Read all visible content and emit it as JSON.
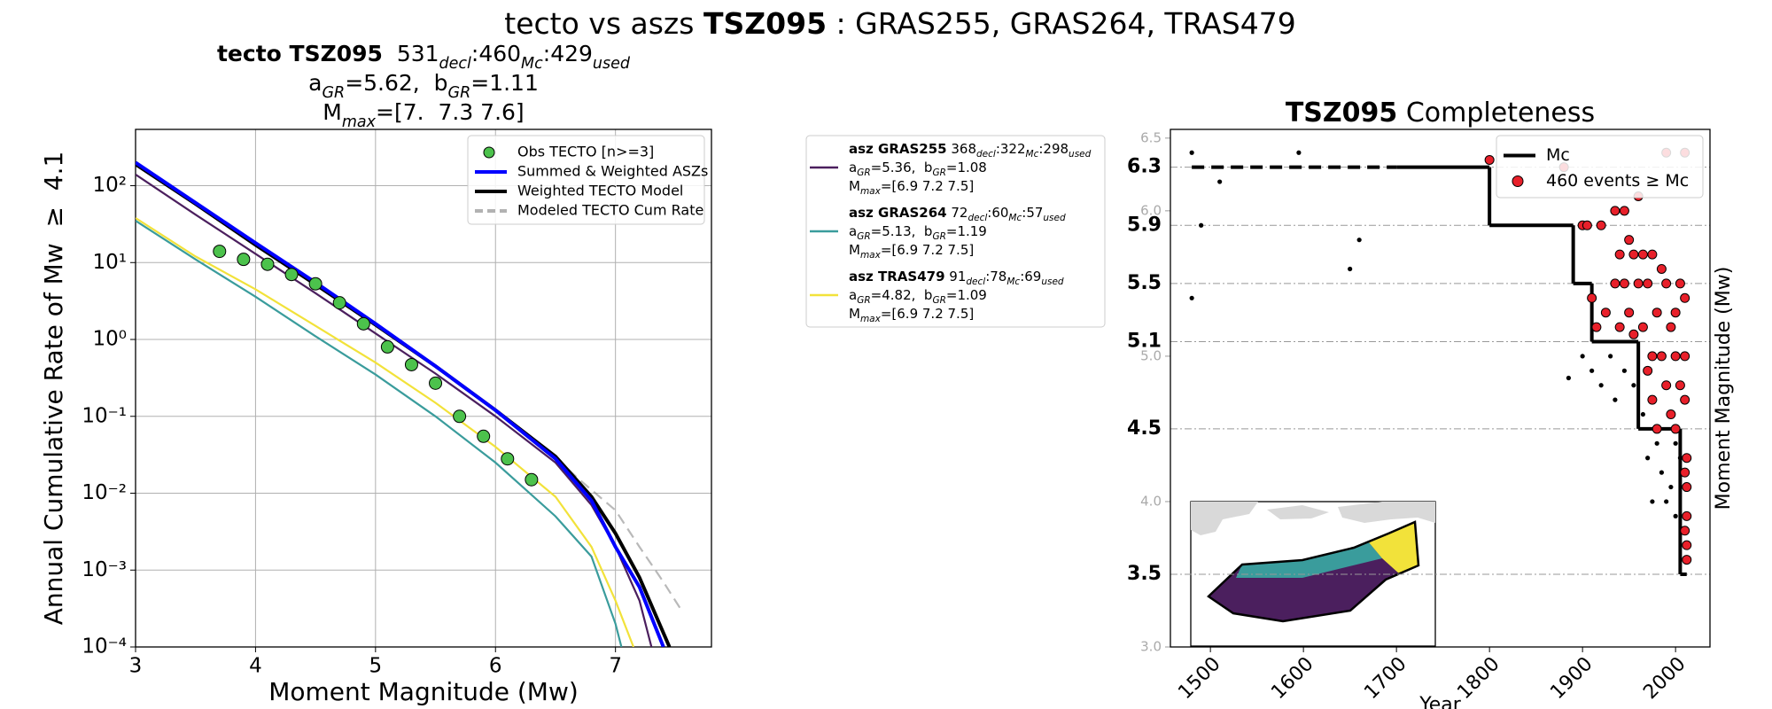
{
  "suptitle": [
    {
      "text": "tecto vs aszs "
    },
    {
      "bold": "TSZ095"
    },
    {
      "text": " : GRAS255, GRAS264, TRAS479"
    }
  ],
  "chart_data": [
    {
      "type": "line",
      "log_y": true,
      "grid": true,
      "legend": "upper right",
      "title_lines": [
        [
          {
            "bold": "tecto TSZ095"
          },
          {
            "text": "  531"
          },
          {
            "sub": "decl"
          },
          {
            "text": ":460"
          },
          {
            "sub": "Mc"
          },
          {
            "text": ":429"
          },
          {
            "sub": "used"
          }
        ],
        [
          {
            "text": "a"
          },
          {
            "sub": "GR"
          },
          {
            "text": "=5.62,  b"
          },
          {
            "sub": "GR"
          },
          {
            "text": "=1.11"
          }
        ],
        [
          {
            "text": "M"
          },
          {
            "sub": "max"
          },
          {
            "text": "=[7.  7.3 7.6]"
          }
        ]
      ],
      "xlabel": "Moment Magnitude (Mw)",
      "ylabel": "Annual Cumulative Rate of Mw  ≥  4.1",
      "xlim": [
        3,
        7.8
      ],
      "xticks": [
        3,
        4,
        5,
        6,
        7
      ],
      "ylim": [
        0.0001,
        540
      ],
      "yticks": [
        {
          "value": 0.0001,
          "label": "10⁻⁴"
        },
        {
          "value": 0.001,
          "label": "10⁻³"
        },
        {
          "value": 0.01,
          "label": "10⁻²"
        },
        {
          "value": 0.1,
          "label": "10⁻¹"
        },
        {
          "value": 1,
          "label": "10⁰"
        },
        {
          "value": 10,
          "label": "10¹"
        },
        {
          "value": 100,
          "label": "10²"
        }
      ],
      "series": [
        {
          "name": "Obs TECTO [n>=3]",
          "style": "markers",
          "color": "#4cc24c",
          "legend": "main",
          "x": [
            3.7,
            3.9,
            4.1,
            4.3,
            4.5,
            4.7,
            4.9,
            5.1,
            5.3,
            5.5,
            5.7,
            5.9,
            6.1,
            6.3
          ],
          "values": [
            14,
            11,
            9.5,
            7,
            5.3,
            3,
            1.6,
            0.8,
            0.47,
            0.27,
            0.1,
            0.055,
            0.028,
            0.015
          ]
        },
        {
          "name": "Summed & Weighted ASZs",
          "style": "solid",
          "color": "#0000ff",
          "legend": "main",
          "x": [
            3,
            3.5,
            4,
            4.5,
            5,
            5.5,
            6,
            6.5,
            6.8,
            7,
            7.2,
            7.4
          ],
          "values": [
            200,
            60,
            18,
            5.5,
            1.6,
            0.45,
            0.12,
            0.028,
            0.008,
            0.002,
            0.0006,
            0.0001
          ]
        },
        {
          "name": "Weighted TECTO Model",
          "style": "solid",
          "color": "#000000",
          "legend": "main",
          "x": [
            3,
            3.5,
            4,
            4.5,
            5,
            5.5,
            6,
            6.5,
            6.8,
            7,
            7.2,
            7.45
          ],
          "values": [
            190,
            58,
            17,
            5.2,
            1.55,
            0.45,
            0.12,
            0.03,
            0.009,
            0.003,
            0.0008,
            0.0001
          ]
        },
        {
          "name": "Modeled TECTO Cum Rate",
          "style": "dashed",
          "color": "#808080",
          "legend": "main",
          "x": [
            6.4,
            6.7,
            7,
            7.2,
            7.4,
            7.55
          ],
          "values": [
            0.04,
            0.015,
            0.006,
            0.002,
            0.0007,
            0.0003
          ]
        },
        {
          "name": "asz GRAS255",
          "style": "solid",
          "color": "#4b1f5e",
          "legend": "panel",
          "details": [
            [
              {
                "text": " 368"
              },
              {
                "sub": "decl"
              },
              {
                "text": ":322"
              },
              {
                "sub": "Mc"
              },
              {
                "text": ":298"
              },
              {
                "sub": "used"
              }
            ],
            [
              {
                "text": "a"
              },
              {
                "sub": "GR"
              },
              {
                "text": "=5.36,  b"
              },
              {
                "sub": "GR"
              },
              {
                "text": "=1.08"
              }
            ],
            [
              {
                "text": "M"
              },
              {
                "sub": "max"
              },
              {
                "text": "=[6.9 7.2 7.5]"
              }
            ]
          ],
          "x": [
            3,
            3.5,
            4,
            4.5,
            5,
            5.5,
            6,
            6.5,
            6.8,
            7,
            7.2,
            7.3
          ],
          "values": [
            140,
            42,
            13,
            4,
            1.2,
            0.36,
            0.1,
            0.025,
            0.007,
            0.002,
            0.0004,
            0.0001
          ]
        },
        {
          "name": "asz GRAS264",
          "style": "solid",
          "color": "#3a9c9c",
          "legend": "panel",
          "details": [
            [
              {
                "text": " 72"
              },
              {
                "sub": "decl"
              },
              {
                "text": ":60"
              },
              {
                "sub": "Mc"
              },
              {
                "text": ":57"
              },
              {
                "sub": "used"
              }
            ],
            [
              {
                "text": "a"
              },
              {
                "sub": "GR"
              },
              {
                "text": "=5.13,  b"
              },
              {
                "sub": "GR"
              },
              {
                "text": "=1.19"
              }
            ],
            [
              {
                "text": "M"
              },
              {
                "sub": "max"
              },
              {
                "text": "=[6.9 7.2 7.5]"
              }
            ]
          ],
          "x": [
            3,
            3.5,
            4,
            4.5,
            5,
            5.5,
            6,
            6.5,
            6.8,
            7,
            7.05
          ],
          "values": [
            35,
            11,
            3.6,
            1.1,
            0.35,
            0.1,
            0.025,
            0.005,
            0.0015,
            0.0002,
            0.0001
          ]
        },
        {
          "name": "asz TRAS479",
          "style": "solid",
          "color": "#f2e23a",
          "legend": "panel",
          "details": [
            [
              {
                "text": " 91"
              },
              {
                "sub": "decl"
              },
              {
                "text": ":78"
              },
              {
                "sub": "Mc"
              },
              {
                "text": ":69"
              },
              {
                "sub": "used"
              }
            ],
            [
              {
                "text": "a"
              },
              {
                "sub": "GR"
              },
              {
                "text": "=4.82,  b"
              },
              {
                "sub": "GR"
              },
              {
                "text": "=1.09"
              }
            ],
            [
              {
                "text": "M"
              },
              {
                "sub": "max"
              },
              {
                "text": "=[6.9 7.2 7.5]"
              }
            ]
          ],
          "x": [
            3,
            3.5,
            4,
            4.5,
            5,
            5.5,
            6,
            6.5,
            6.8,
            7,
            7.15
          ],
          "values": [
            38,
            12,
            4.5,
            1.5,
            0.5,
            0.15,
            0.04,
            0.009,
            0.002,
            0.0004,
            0.0001
          ]
        }
      ]
    },
    {
      "type": "completeness",
      "log_y": false,
      "grid": false,
      "legend": "upper right",
      "title_lines": [
        [
          {
            "bold": "TSZ095"
          },
          {
            "text": " Completeness"
          }
        ]
      ],
      "xlabel": "Year",
      "ylabel": "Moment Magnitude (Mw)",
      "xlim": [
        1457,
        2037
      ],
      "xticks": [
        1500,
        1600,
        1700,
        1800,
        1900,
        2000
      ],
      "ylim": [
        3.0,
        6.56
      ],
      "yticks": [
        {
          "value": 3.0,
          "label": "3.0"
        },
        {
          "value": 4.0,
          "label": "4.0"
        },
        {
          "value": 5.0,
          "label": "5.0"
        },
        {
          "value": 6.0,
          "label": "6.0"
        },
        {
          "value": 6.5,
          "label": "6.5"
        }
      ],
      "mc_levels": [
        3.5,
        4.5,
        5.1,
        5.5,
        5.9,
        6.3
      ],
      "series": [
        {
          "name": "Mc",
          "style": "step",
          "color": "#000000",
          "legend": "main",
          "dashed_until": 1700,
          "x": [
            1480,
            1800,
            1890,
            1910,
            1960,
            2005,
            2012
          ],
          "values": [
            6.3,
            5.9,
            5.5,
            5.1,
            4.5,
            3.5,
            3.5
          ]
        },
        {
          "style": "dots",
          "color": "#000000",
          "x": [
            1480,
            1480,
            1490,
            1510,
            1595,
            1650,
            1660,
            1885,
            1900,
            1910,
            1920,
            1930,
            1935,
            1945,
            1955,
            1965,
            1970,
            1975,
            1980,
            1985,
            1990,
            1995,
            2000,
            2000,
            2005
          ],
          "values": [
            6.4,
            5.4,
            5.9,
            6.2,
            6.4,
            5.6,
            5.8,
            4.85,
            5.0,
            4.9,
            4.8,
            5.0,
            4.7,
            4.9,
            4.8,
            4.6,
            4.3,
            4.0,
            4.4,
            4.2,
            4.0,
            4.1,
            4.4,
            3.9,
            4.3
          ]
        },
        {
          "name": "460 events ≥ Mc",
          "style": "markers",
          "color": "#e8202a",
          "legend": "main",
          "x": [
            1800,
            1880,
            1900,
            1905,
            1920,
            1935,
            1945,
            1960,
            1950,
            1940,
            1955,
            1965,
            1975,
            1985,
            1935,
            1945,
            1960,
            1970,
            1990,
            2005,
            1910,
            1925,
            1950,
            1980,
            2000,
            2010,
            1915,
            1940,
            1955,
            1965,
            1995,
            1975,
            1985,
            2000,
            2010,
            1970,
            1990,
            2005,
            1975,
            1995,
            2010,
            1980,
            2000,
            2012,
            2012,
            2012,
            2012,
            2012,
            2010,
            2010,
            1990,
            2010
          ],
          "values": [
            6.35,
            6.3,
            5.9,
            5.9,
            5.9,
            6.0,
            6.0,
            6.1,
            5.8,
            5.7,
            5.7,
            5.7,
            5.7,
            5.6,
            5.5,
            5.5,
            5.5,
            5.5,
            5.5,
            5.5,
            5.4,
            5.3,
            5.3,
            5.3,
            5.3,
            5.4,
            5.2,
            5.2,
            5.15,
            5.2,
            5.2,
            5.0,
            5.0,
            5.0,
            5.0,
            4.9,
            4.8,
            4.8,
            4.7,
            4.6,
            4.7,
            4.5,
            4.5,
            4.3,
            4.1,
            3.9,
            3.7,
            3.6,
            4.2,
            3.8,
            6.4,
            6.4
          ]
        }
      ]
    }
  ]
}
